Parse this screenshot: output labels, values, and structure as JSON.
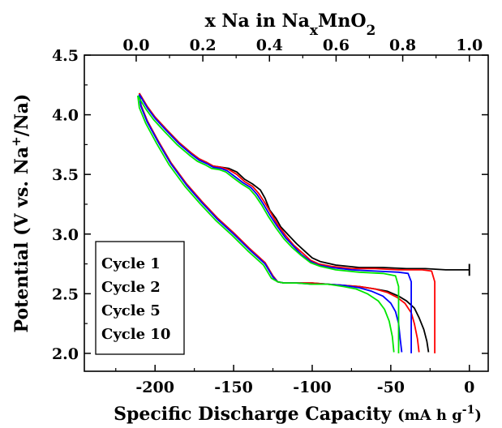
{
  "chart_data": {
    "type": "line",
    "xlabel_bottom": "Specific Discharge Capacity",
    "xlabel_bottom_unit_prefix": "(mA h g",
    "xlabel_bottom_unit_sup": "-1",
    "xlabel_bottom_unit_suffix": ")",
    "xlabel_top_prefix": "x Na in Na",
    "xlabel_top_sub1": "x",
    "xlabel_top_mid": "MnO",
    "xlabel_top_sub2": "2",
    "ylabel_prefix": "Potential (V vs. Na",
    "ylabel_sup": "+",
    "ylabel_suffix": "/Na)",
    "xlim": [
      -245,
      12
    ],
    "ylim": [
      1.85,
      4.5
    ],
    "top_axis_range": [
      0.0,
      1.0
    ],
    "bottom_ticks": [
      "-200",
      "-150",
      "-100",
      "-50",
      "0"
    ],
    "bottom_tick_values": [
      -200,
      -150,
      -100,
      -50,
      0
    ],
    "top_ticks": [
      "0.0",
      "0.2",
      "0.4",
      "0.6",
      "0.8",
      "1.0"
    ],
    "top_tick_values": [
      0.0,
      0.2,
      0.4,
      0.6,
      0.8,
      1.0
    ],
    "left_ticks": [
      "2.0",
      "2.5",
      "3.0",
      "3.5",
      "4.0",
      "4.5"
    ],
    "left_tick_values": [
      2.0,
      2.5,
      3.0,
      3.5,
      4.0,
      4.5
    ],
    "grid": false,
    "legend_position": "bottom-left",
    "series": [
      {
        "name": "Cycle 1",
        "color": "#000000",
        "discharge": [
          [
            0,
            2.7
          ],
          [
            -5,
            2.7
          ],
          [
            -15,
            2.7
          ],
          [
            -28,
            2.71
          ],
          [
            -40,
            2.71
          ],
          [
            -55,
            2.72
          ],
          [
            -70,
            2.72
          ],
          [
            -85,
            2.74
          ],
          [
            -95,
            2.77
          ],
          [
            -100,
            2.8
          ],
          [
            -105,
            2.86
          ],
          [
            -110,
            2.92
          ],
          [
            -115,
            2.99
          ],
          [
            -120,
            3.06
          ],
          [
            -123,
            3.13
          ],
          [
            -127,
            3.2
          ],
          [
            -130,
            3.3
          ],
          [
            -133,
            3.37
          ],
          [
            -138,
            3.42
          ],
          [
            -143,
            3.46
          ],
          [
            -148,
            3.52
          ],
          [
            -153,
            3.55
          ],
          [
            -158,
            3.56
          ],
          [
            -163,
            3.57
          ],
          [
            -167,
            3.6
          ],
          [
            -172,
            3.63
          ],
          [
            -177,
            3.68
          ],
          [
            -185,
            3.77
          ],
          [
            -193,
            3.88
          ],
          [
            -200,
            3.98
          ],
          [
            -205,
            4.07
          ],
          [
            -210,
            4.18
          ]
        ],
        "charge": [
          [
            -210,
            4.18
          ],
          [
            -209,
            4.08
          ],
          [
            -205,
            3.95
          ],
          [
            -198,
            3.78
          ],
          [
            -190,
            3.6
          ],
          [
            -180,
            3.42
          ],
          [
            -170,
            3.27
          ],
          [
            -160,
            3.13
          ],
          [
            -150,
            3.01
          ],
          [
            -140,
            2.88
          ],
          [
            -130,
            2.76
          ],
          [
            -125,
            2.65
          ],
          [
            -122,
            2.6
          ],
          [
            -118,
            2.59
          ],
          [
            -110,
            2.59
          ],
          [
            -100,
            2.59
          ],
          [
            -90,
            2.58
          ],
          [
            -80,
            2.57
          ],
          [
            -70,
            2.56
          ],
          [
            -60,
            2.54
          ],
          [
            -52,
            2.52
          ],
          [
            -45,
            2.48
          ],
          [
            -40,
            2.44
          ],
          [
            -35,
            2.38
          ],
          [
            -32,
            2.3
          ],
          [
            -29,
            2.2
          ],
          [
            -27,
            2.1
          ],
          [
            -26,
            2.01
          ]
        ]
      },
      {
        "name": "Cycle 2",
        "color": "#ff0000",
        "discharge": [
          [
            -22,
            2.0
          ],
          [
            -22,
            2.3
          ],
          [
            -22,
            2.6
          ],
          [
            -24,
            2.69
          ],
          [
            -30,
            2.7
          ],
          [
            -45,
            2.7
          ],
          [
            -60,
            2.71
          ],
          [
            -75,
            2.71
          ],
          [
            -88,
            2.73
          ],
          [
            -96,
            2.75
          ],
          [
            -101,
            2.78
          ],
          [
            -106,
            2.84
          ],
          [
            -112,
            2.91
          ],
          [
            -117,
            2.99
          ],
          [
            -122,
            3.08
          ],
          [
            -126,
            3.17
          ],
          [
            -130,
            3.26
          ],
          [
            -134,
            3.34
          ],
          [
            -138,
            3.4
          ],
          [
            -143,
            3.44
          ],
          [
            -148,
            3.5
          ],
          [
            -153,
            3.54
          ],
          [
            -158,
            3.56
          ],
          [
            -163,
            3.57
          ],
          [
            -167,
            3.6
          ],
          [
            -172,
            3.63
          ],
          [
            -177,
            3.68
          ],
          [
            -185,
            3.77
          ],
          [
            -193,
            3.88
          ],
          [
            -200,
            3.98
          ],
          [
            -205,
            4.07
          ],
          [
            -210,
            4.18
          ]
        ],
        "charge": [
          [
            -210,
            4.18
          ],
          [
            -209,
            4.08
          ],
          [
            -205,
            3.95
          ],
          [
            -198,
            3.78
          ],
          [
            -190,
            3.6
          ],
          [
            -180,
            3.42
          ],
          [
            -170,
            3.27
          ],
          [
            -160,
            3.13
          ],
          [
            -150,
            3.01
          ],
          [
            -140,
            2.88
          ],
          [
            -130,
            2.76
          ],
          [
            -125,
            2.65
          ],
          [
            -122,
            2.6
          ],
          [
            -118,
            2.59
          ],
          [
            -110,
            2.59
          ],
          [
            -100,
            2.59
          ],
          [
            -90,
            2.58
          ],
          [
            -80,
            2.57
          ],
          [
            -70,
            2.56
          ],
          [
            -60,
            2.54
          ],
          [
            -52,
            2.51
          ],
          [
            -46,
            2.47
          ],
          [
            -41,
            2.42
          ],
          [
            -37,
            2.34
          ],
          [
            -35,
            2.25
          ],
          [
            -33,
            2.12
          ],
          [
            -32,
            2.01
          ]
        ]
      },
      {
        "name": "Cycle 5",
        "color": "#0000ff",
        "discharge": [
          [
            -37,
            2.0
          ],
          [
            -37,
            2.3
          ],
          [
            -37,
            2.6
          ],
          [
            -39,
            2.67
          ],
          [
            -45,
            2.68
          ],
          [
            -60,
            2.69
          ],
          [
            -75,
            2.7
          ],
          [
            -88,
            2.72
          ],
          [
            -96,
            2.74
          ],
          [
            -101,
            2.77
          ],
          [
            -107,
            2.83
          ],
          [
            -112,
            2.9
          ],
          [
            -117,
            2.97
          ],
          [
            -122,
            3.06
          ],
          [
            -127,
            3.16
          ],
          [
            -131,
            3.25
          ],
          [
            -135,
            3.33
          ],
          [
            -139,
            3.39
          ],
          [
            -144,
            3.43
          ],
          [
            -149,
            3.48
          ],
          [
            -154,
            3.53
          ],
          [
            -158,
            3.55
          ],
          [
            -163,
            3.56
          ],
          [
            -167,
            3.59
          ],
          [
            -172,
            3.62
          ],
          [
            -177,
            3.67
          ],
          [
            -185,
            3.76
          ],
          [
            -193,
            3.87
          ],
          [
            -200,
            3.97
          ],
          [
            -205,
            4.06
          ],
          [
            -210,
            4.17
          ]
        ],
        "charge": [
          [
            -210,
            4.17
          ],
          [
            -209,
            4.07
          ],
          [
            -205,
            3.94
          ],
          [
            -198,
            3.77
          ],
          [
            -190,
            3.59
          ],
          [
            -180,
            3.41
          ],
          [
            -170,
            3.26
          ],
          [
            -160,
            3.12
          ],
          [
            -150,
            3.0
          ],
          [
            -140,
            2.87
          ],
          [
            -130,
            2.75
          ],
          [
            -125,
            2.64
          ],
          [
            -122,
            2.6
          ],
          [
            -118,
            2.59
          ],
          [
            -110,
            2.59
          ],
          [
            -100,
            2.58
          ],
          [
            -90,
            2.58
          ],
          [
            -80,
            2.57
          ],
          [
            -70,
            2.55
          ],
          [
            -62,
            2.52
          ],
          [
            -55,
            2.48
          ],
          [
            -50,
            2.42
          ],
          [
            -47,
            2.35
          ],
          [
            -45,
            2.25
          ],
          [
            -44,
            2.12
          ],
          [
            -43,
            2.01
          ]
        ]
      },
      {
        "name": "Cycle 10",
        "color": "#00e600",
        "discharge": [
          [
            -45,
            2.0
          ],
          [
            -45,
            2.3
          ],
          [
            -45,
            2.56
          ],
          [
            -47,
            2.65
          ],
          [
            -55,
            2.67
          ],
          [
            -70,
            2.68
          ],
          [
            -85,
            2.7
          ],
          [
            -95,
            2.73
          ],
          [
            -101,
            2.76
          ],
          [
            -107,
            2.82
          ],
          [
            -113,
            2.89
          ],
          [
            -118,
            2.96
          ],
          [
            -123,
            3.05
          ],
          [
            -128,
            3.15
          ],
          [
            -132,
            3.24
          ],
          [
            -136,
            3.32
          ],
          [
            -140,
            3.38
          ],
          [
            -145,
            3.42
          ],
          [
            -150,
            3.47
          ],
          [
            -155,
            3.52
          ],
          [
            -159,
            3.54
          ],
          [
            -164,
            3.55
          ],
          [
            -168,
            3.58
          ],
          [
            -173,
            3.61
          ],
          [
            -178,
            3.66
          ],
          [
            -186,
            3.75
          ],
          [
            -194,
            3.86
          ],
          [
            -201,
            3.96
          ],
          [
            -206,
            4.05
          ],
          [
            -211,
            4.16
          ]
        ],
        "charge": [
          [
            -211,
            4.16
          ],
          [
            -210,
            4.06
          ],
          [
            -206,
            3.93
          ],
          [
            -199,
            3.76
          ],
          [
            -191,
            3.58
          ],
          [
            -181,
            3.4
          ],
          [
            -171,
            3.25
          ],
          [
            -161,
            3.11
          ],
          [
            -151,
            2.99
          ],
          [
            -141,
            2.86
          ],
          [
            -131,
            2.74
          ],
          [
            -126,
            2.63
          ],
          [
            -122,
            2.6
          ],
          [
            -118,
            2.59
          ],
          [
            -110,
            2.59
          ],
          [
            -100,
            2.58
          ],
          [
            -90,
            2.58
          ],
          [
            -80,
            2.56
          ],
          [
            -72,
            2.54
          ],
          [
            -65,
            2.5
          ],
          [
            -58,
            2.44
          ],
          [
            -54,
            2.37
          ],
          [
            -51,
            2.27
          ],
          [
            -49,
            2.14
          ],
          [
            -48,
            2.01
          ]
        ]
      }
    ]
  }
}
